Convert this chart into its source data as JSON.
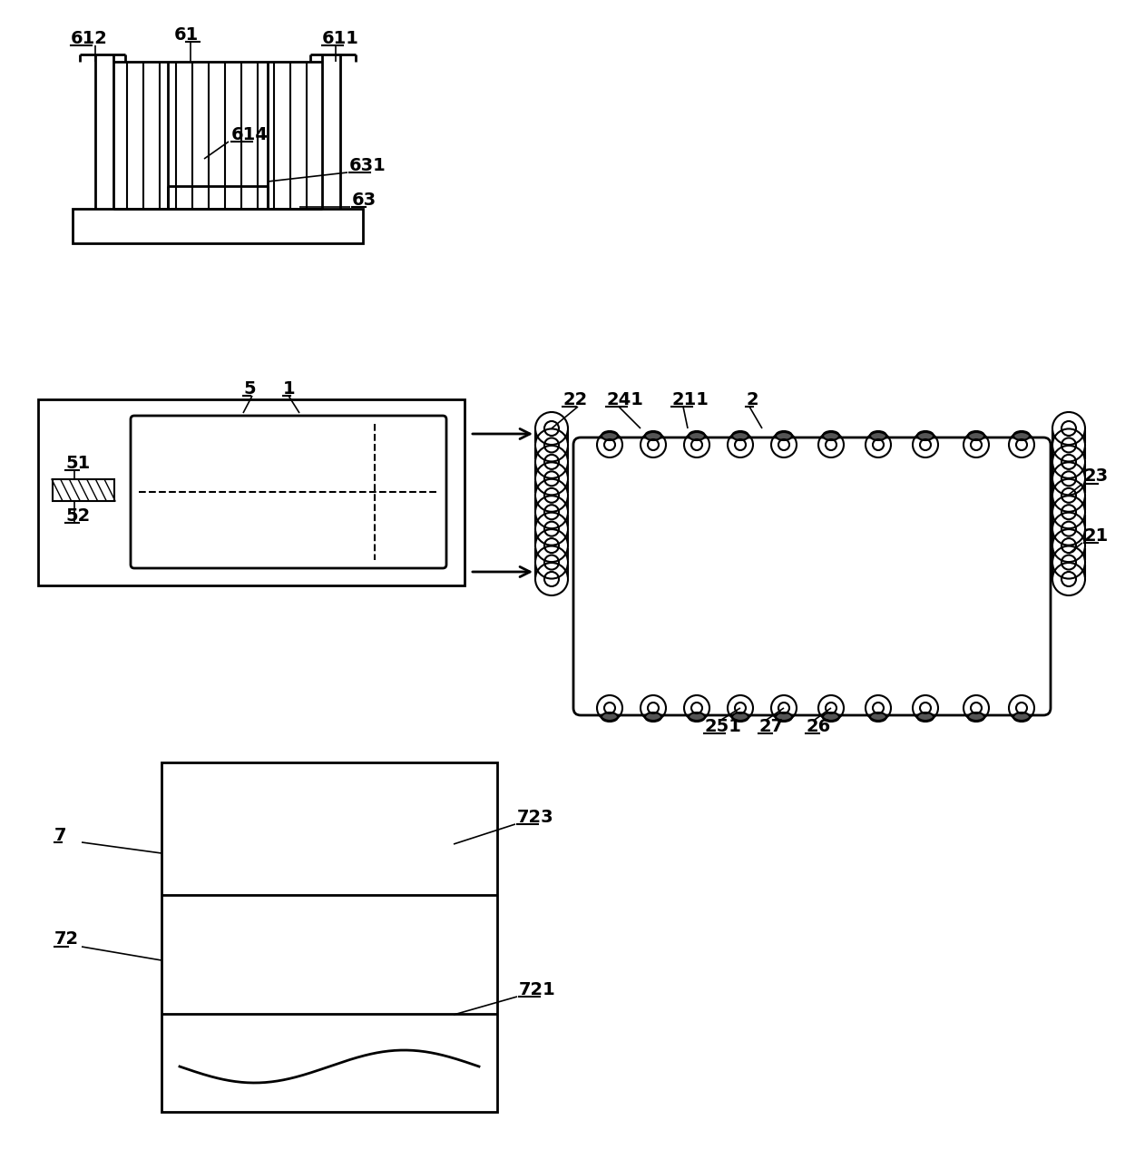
{
  "bg_color": "#ffffff",
  "line_color": "#000000",
  "lw": 2.0,
  "tlw": 1.5,
  "fs": 14,
  "fw": "bold"
}
